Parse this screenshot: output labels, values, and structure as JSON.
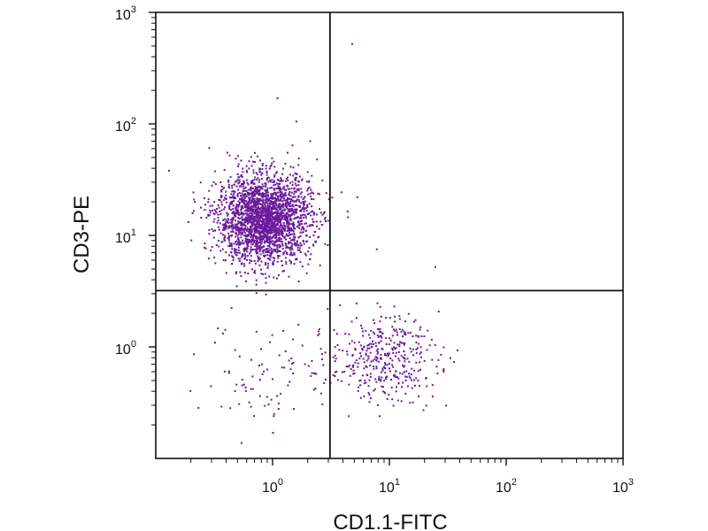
{
  "chart_data": {
    "type": "scatter",
    "title": "",
    "xlabel": "CD1.1-FITC",
    "ylabel": "CD3-PE",
    "xscale": "log",
    "yscale": "log",
    "xlim": [
      0.1,
      1000
    ],
    "ylim": [
      0.1,
      1000
    ],
    "x_ticks": [
      {
        "value": 1,
        "base": "10",
        "exp": "0"
      },
      {
        "value": 10,
        "base": "10",
        "exp": "1"
      },
      {
        "value": 100,
        "base": "10",
        "exp": "2"
      },
      {
        "value": 1000,
        "base": "10",
        "exp": "3"
      }
    ],
    "y_ticks": [
      {
        "value": 1,
        "base": "10",
        "exp": "0"
      },
      {
        "value": 10,
        "base": "10",
        "exp": "1"
      },
      {
        "value": 100,
        "base": "10",
        "exp": "2"
      },
      {
        "value": 1000,
        "base": "10",
        "exp": "3"
      }
    ],
    "grid": false,
    "legend": "none",
    "point_color": "#6a1b9a",
    "quadrant_gate": {
      "x": 3.1,
      "y": 3.2
    },
    "populations": [
      {
        "center_x": 0.85,
        "center_y": 14,
        "count": 2400,
        "spread_x": 0.2,
        "spread_y": 0.2
      },
      {
        "center_x": 9,
        "center_y": 0.8,
        "count": 380,
        "spread_x": 0.23,
        "spread_y": 0.19
      },
      {
        "center_x": 1.0,
        "center_y": 0.6,
        "count": 90,
        "spread_x": 0.3,
        "spread_y": 0.25
      }
    ],
    "outliers": [
      {
        "x": 4.8,
        "y": 520
      },
      {
        "x": 1.1,
        "y": 170
      },
      {
        "x": 1.6,
        "y": 105
      },
      {
        "x": 0.13,
        "y": 38
      },
      {
        "x": 7.8,
        "y": 7.5
      },
      {
        "x": 5.3,
        "y": 22
      },
      {
        "x": 2.4,
        "y": 48
      },
      {
        "x": 2.1,
        "y": 70
      }
    ]
  }
}
